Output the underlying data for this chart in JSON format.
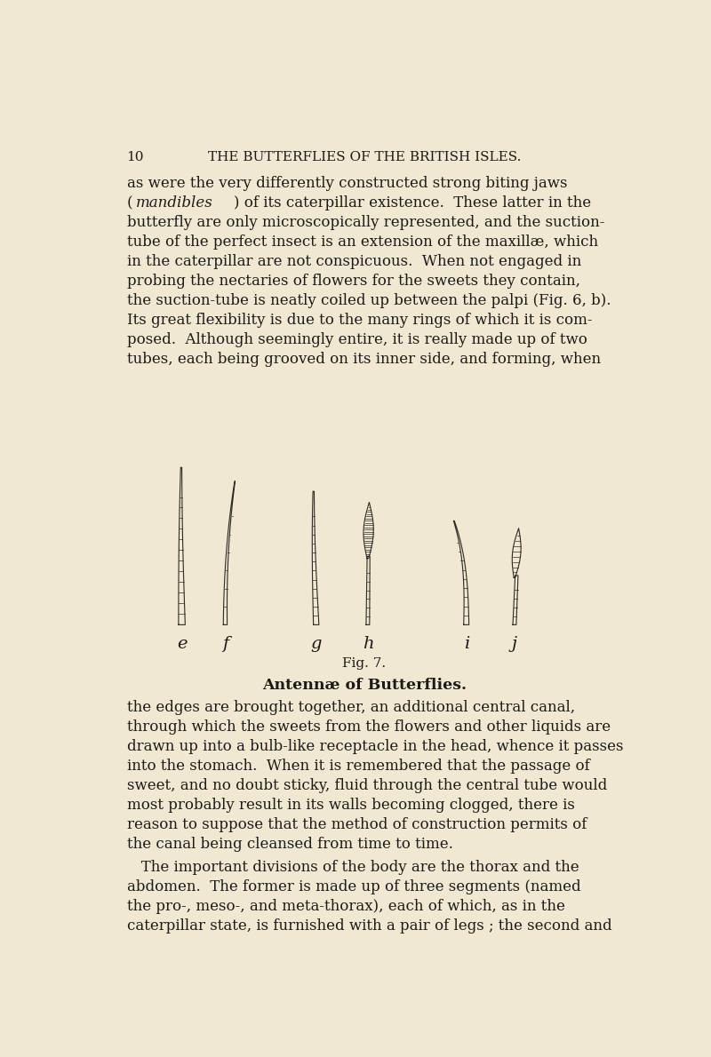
{
  "background_color": "#f0e8d0",
  "page_number": "10",
  "header_text": "THE BUTTERFLIES OF THE BRITISH ISLES.",
  "fig_label": "Fig. 7.",
  "fig_caption": "Antennæ of Butterflies.",
  "antenna_labels": [
    "e",
    "f",
    "g",
    "h",
    "i",
    "j"
  ],
  "text_color": "#1a1a1a",
  "line_color": "#2a2a2a"
}
